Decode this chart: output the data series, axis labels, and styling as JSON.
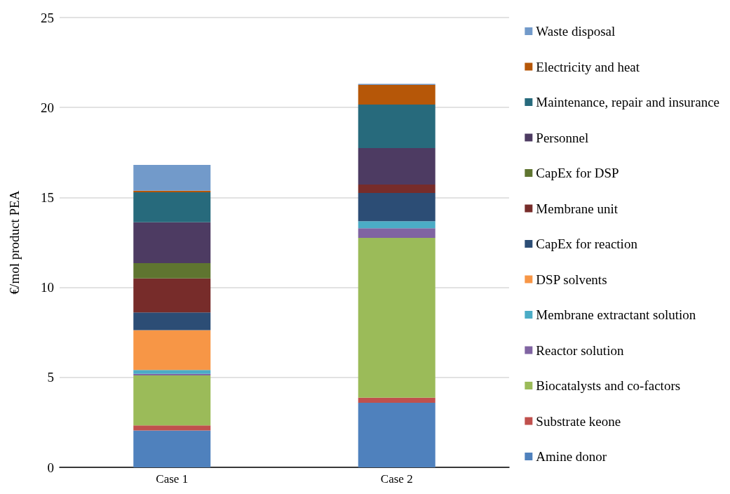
{
  "chart_data": {
    "type": "bar",
    "stacked": true,
    "ylabel": "€/mol product PEA",
    "categories": [
      "Case 1",
      "Case 2"
    ],
    "series": [
      {
        "name": "Amine donor",
        "color": "#4f81bd",
        "values": [
          2.05,
          3.59
        ]
      },
      {
        "name": "Substrate keone",
        "color": "#c0504d",
        "values": [
          0.28,
          0.28
        ]
      },
      {
        "name": "Biocatalysts and co-factors",
        "color": "#9bbb59",
        "values": [
          2.78,
          8.88
        ]
      },
      {
        "name": "Reactor solution",
        "color": "#8064a2",
        "values": [
          0.09,
          0.54
        ]
      },
      {
        "name": "Membrane extractant solution",
        "color": "#4bacc6",
        "values": [
          0.21,
          0.39
        ]
      },
      {
        "name": "DSP solvents",
        "color": "#f79646",
        "values": [
          2.21,
          0
        ]
      },
      {
        "name": "CapEx for reaction",
        "color": "#2c4d75",
        "values": [
          0.99,
          1.57
        ]
      },
      {
        "name": "Membrane unit",
        "color": "#772c2a",
        "values": [
          1.89,
          0.47
        ]
      },
      {
        "name": "CapEx for DSP",
        "color": "#5f7530",
        "values": [
          0.85,
          0
        ]
      },
      {
        "name": "Personnel",
        "color": "#4d3b62",
        "values": [
          2.27,
          2.03
        ]
      },
      {
        "name": "Maintenance, repair and insurance",
        "color": "#276a7c",
        "values": [
          1.67,
          2.41
        ]
      },
      {
        "name": "Electricity and heat",
        "color": "#b65708",
        "values": [
          0.09,
          1.1
        ]
      },
      {
        "name": "Waste disposal",
        "color": "#729aca",
        "values": [
          1.43,
          0.05
        ]
      }
    ],
    "ylim": [
      0,
      25
    ],
    "yticks": [
      0,
      5,
      10,
      15,
      20,
      25
    ],
    "grid": "y",
    "legend": "right"
  }
}
